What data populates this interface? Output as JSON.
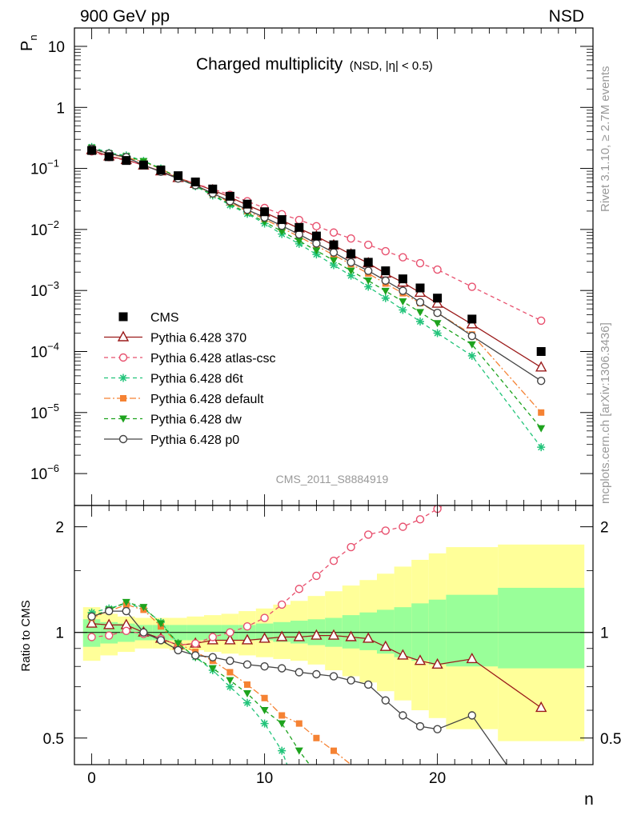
{
  "header": {
    "left": "900 GeV pp",
    "right": "NSD",
    "title_main": "Charged multiplicity",
    "title_sub": "(NSD, |η| < 0.5)",
    "side_top": "Rivet 3.1.10, ≥ 2.7M events",
    "side_bottom": "mcplots.cern.ch [arXiv:1306.3436]",
    "watermark": "CMS_2011_S8884919"
  },
  "colors": {
    "CMS": "#000000",
    "p370": "#9b1b1b",
    "atlas": "#e8506e",
    "d6t": "#22c47a",
    "default": "#f58233",
    "dw": "#1ea31e",
    "p0": "#444444",
    "band_inner": "#99ff99",
    "band_outer": "#ffff99"
  },
  "chart_data": [
    {
      "type": "line",
      "name": "main",
      "ylabel": "P",
      "ylabel_sub": "n",
      "yscale": "log",
      "xlim": [
        -1,
        29
      ],
      "ylim": [
        3e-07,
        20
      ],
      "yticks": [
        {
          "v": 1e-06,
          "base": "10",
          "exp": "−6"
        },
        {
          "v": 1e-05,
          "base": "10",
          "exp": "−5"
        },
        {
          "v": 0.0001,
          "base": "10",
          "exp": "−4"
        },
        {
          "v": 0.001,
          "base": "10",
          "exp": "−3"
        },
        {
          "v": 0.01,
          "base": "10",
          "exp": "−2"
        },
        {
          "v": 0.1,
          "base": "10",
          "exp": "−1"
        },
        {
          "v": 1,
          "base": "1",
          "exp": ""
        },
        {
          "v": 10,
          "base": "10",
          "exp": ""
        }
      ],
      "x": [
        0,
        1,
        2,
        3,
        4,
        5,
        6,
        7,
        8,
        9,
        10,
        11,
        12,
        13,
        14,
        15,
        16,
        17,
        18,
        19,
        20,
        22,
        26
      ],
      "series": [
        {
          "name": "CMS",
          "key": "CMS",
          "marker": "square",
          "values": [
            0.197,
            0.156,
            0.135,
            0.114,
            0.094,
            0.076,
            0.06,
            0.046,
            0.035,
            0.026,
            0.0195,
            0.0145,
            0.0108,
            0.0078,
            0.0056,
            0.004,
            0.0029,
            0.0021,
            0.00155,
            0.0011,
            0.00075,
            0.00034,
            0.0001
          ]
        },
        {
          "name": "Pythia 6.428 370",
          "key": "p370",
          "marker": "triangle-open",
          "dash": "",
          "values": [
            0.2,
            0.158,
            0.138,
            0.112,
            0.09,
            0.07,
            0.056,
            0.044,
            0.034,
            0.025,
            0.019,
            0.0141,
            0.0104,
            0.0077,
            0.0055,
            0.0039,
            0.0028,
            0.0019,
            0.00135,
            0.00092,
            0.00061,
            0.00028,
            5.5e-05
          ]
        },
        {
          "name": "Pythia 6.428 atlas-csc",
          "key": "atlas",
          "marker": "circle-open",
          "dash": "5,4",
          "values": [
            0.19,
            0.153,
            0.136,
            0.113,
            0.09,
            0.07,
            0.056,
            0.046,
            0.037,
            0.029,
            0.0225,
            0.0178,
            0.0143,
            0.0113,
            0.0089,
            0.0071,
            0.0056,
            0.0044,
            0.0035,
            0.0028,
            0.0022,
            0.00115,
            0.00032
          ]
        },
        {
          "name": "Pythia 6.428 d6t",
          "key": "d6t",
          "marker": "star",
          "dash": "5,4",
          "values": [
            0.225,
            0.18,
            0.163,
            0.133,
            0.1,
            0.07,
            0.051,
            0.036,
            0.025,
            0.018,
            0.0125,
            0.0084,
            0.0058,
            0.0039,
            0.0026,
            0.00175,
            0.00115,
            0.00075,
            0.00048,
            0.00031,
            0.0002,
            8.5e-05,
            2.7e-06
          ]
        },
        {
          "name": "Pythia 6.428 default",
          "key": "default",
          "marker": "square-small",
          "dash": "8,3,2,3",
          "values": [
            0.212,
            0.17,
            0.152,
            0.128,
            0.098,
            0.071,
            0.053,
            0.038,
            0.028,
            0.02,
            0.0148,
            0.0106,
            0.0076,
            0.0054,
            0.0038,
            0.0027,
            0.0019,
            0.0013,
            0.0009,
            0.00062,
            0.00043,
            0.00019,
            1e-05
          ]
        },
        {
          "name": "Pythia 6.428 dw",
          "key": "dw",
          "marker": "triangle-down",
          "dash": "5,4",
          "values": [
            0.218,
            0.175,
            0.158,
            0.131,
            0.099,
            0.07,
            0.052,
            0.037,
            0.026,
            0.0187,
            0.0133,
            0.0093,
            0.0065,
            0.0045,
            0.0031,
            0.0021,
            0.00145,
            0.00098,
            0.00066,
            0.00044,
            0.00029,
            0.00013,
            5.5e-06
          ]
        },
        {
          "name": "Pythia 6.428 p0",
          "key": "p0",
          "marker": "circle-open",
          "dash": "",
          "values": [
            0.21,
            0.175,
            0.153,
            0.113,
            0.088,
            0.068,
            0.053,
            0.039,
            0.029,
            0.021,
            0.0157,
            0.0115,
            0.0083,
            0.0059,
            0.0042,
            0.0029,
            0.0021,
            0.00145,
            0.00099,
            0.00064,
            0.00043,
            0.00018,
            3.3e-05
          ]
        }
      ]
    },
    {
      "type": "line",
      "name": "ratio",
      "ylabel": "Ratio to CMS",
      "yscale": "log",
      "xlabel": "n",
      "xlim": [
        -1,
        29
      ],
      "ylim": [
        0.42,
        2.3
      ],
      "yticks": [
        {
          "v": 0.5,
          "label": "0.5"
        },
        {
          "v": 1,
          "label": "1"
        },
        {
          "v": 2,
          "label": "2"
        }
      ],
      "xticks": [
        {
          "v": 0,
          "label": "0"
        },
        {
          "v": 10,
          "label": "10"
        },
        {
          "v": 20,
          "label": "20"
        }
      ],
      "bands": {
        "edges": [
          -0.5,
          0.5,
          1.5,
          2.5,
          3.5,
          4.5,
          5.5,
          6.5,
          7.5,
          8.5,
          9.5,
          10.5,
          11.5,
          12.5,
          13.5,
          14.5,
          15.5,
          16.5,
          17.5,
          18.5,
          19.5,
          20.5,
          23.5,
          28.5
        ],
        "inner_lo": [
          0.91,
          0.93,
          0.94,
          0.95,
          0.95,
          0.95,
          0.95,
          0.95,
          0.95,
          0.95,
          0.95,
          0.94,
          0.93,
          0.92,
          0.91,
          0.9,
          0.89,
          0.87,
          0.85,
          0.83,
          0.81,
          0.8,
          0.79
        ],
        "inner_hi": [
          1.09,
          1.07,
          1.06,
          1.05,
          1.05,
          1.05,
          1.05,
          1.05,
          1.05,
          1.05,
          1.06,
          1.07,
          1.08,
          1.09,
          1.1,
          1.12,
          1.14,
          1.16,
          1.18,
          1.21,
          1.24,
          1.28,
          1.34
        ],
        "outer_lo": [
          0.83,
          0.86,
          0.88,
          0.9,
          0.9,
          0.89,
          0.89,
          0.88,
          0.87,
          0.86,
          0.85,
          0.84,
          0.83,
          0.81,
          0.78,
          0.75,
          0.72,
          0.68,
          0.64,
          0.6,
          0.57,
          0.53,
          0.49
        ],
        "outer_hi": [
          1.18,
          1.13,
          1.11,
          1.1,
          1.1,
          1.1,
          1.11,
          1.12,
          1.13,
          1.15,
          1.17,
          1.2,
          1.23,
          1.27,
          1.31,
          1.36,
          1.41,
          1.47,
          1.54,
          1.61,
          1.68,
          1.75,
          1.78
        ]
      },
      "series": [
        {
          "key": "p370",
          "marker": "triangle-open",
          "dash": "",
          "x": [
            0,
            1,
            2,
            3,
            4,
            5,
            6,
            7,
            8,
            9,
            10,
            11,
            12,
            13,
            14,
            15,
            16,
            17,
            18,
            19,
            20,
            22,
            26
          ],
          "values": [
            1.06,
            1.05,
            1.05,
            1.0,
            0.96,
            0.92,
            0.93,
            0.95,
            0.95,
            0.95,
            0.96,
            0.97,
            0.97,
            0.98,
            0.98,
            0.97,
            0.96,
            0.91,
            0.86,
            0.83,
            0.81,
            0.84,
            0.61
          ]
        },
        {
          "key": "atlas",
          "marker": "circle-open",
          "dash": "5,4",
          "x": [
            0,
            1,
            2,
            3,
            4,
            5,
            6,
            7,
            8,
            9,
            10,
            11,
            12,
            13,
            14,
            15,
            16,
            17,
            18,
            19,
            20,
            20.4
          ],
          "values": [
            0.97,
            0.98,
            1.01,
            0.99,
            0.96,
            0.92,
            0.93,
            0.97,
            1.0,
            1.04,
            1.1,
            1.2,
            1.33,
            1.45,
            1.6,
            1.75,
            1.9,
            1.95,
            2.0,
            2.1,
            2.25,
            2.3
          ]
        },
        {
          "key": "d6t",
          "marker": "star",
          "dash": "5,4",
          "x": [
            0,
            1,
            2,
            3,
            4,
            5,
            6,
            7,
            8,
            9,
            10,
            11,
            11.3
          ],
          "values": [
            1.14,
            1.17,
            1.21,
            1.17,
            1.07,
            0.93,
            0.85,
            0.78,
            0.7,
            0.63,
            0.55,
            0.46,
            0.42
          ]
        },
        {
          "key": "default",
          "marker": "square-small",
          "dash": "8,3,2,3",
          "x": [
            0,
            1,
            2,
            3,
            4,
            5,
            6,
            7,
            8,
            9,
            10,
            11,
            12,
            13,
            14,
            15
          ],
          "values": [
            1.1,
            1.15,
            1.2,
            1.16,
            1.04,
            0.93,
            0.88,
            0.83,
            0.77,
            0.71,
            0.65,
            0.58,
            0.55,
            0.5,
            0.46,
            0.42
          ]
        },
        {
          "key": "dw",
          "marker": "triangle-down",
          "dash": "5,4",
          "x": [
            0,
            1,
            2,
            3,
            4,
            5,
            6,
            7,
            8,
            9,
            10,
            11,
            12,
            12.6
          ],
          "values": [
            1.11,
            1.16,
            1.22,
            1.18,
            1.06,
            0.93,
            0.85,
            0.79,
            0.73,
            0.67,
            0.6,
            0.55,
            0.46,
            0.42
          ]
        },
        {
          "key": "p0",
          "marker": "circle-open",
          "dash": "",
          "x": [
            0,
            1,
            2,
            3,
            4,
            5,
            6,
            7,
            8,
            9,
            10,
            11,
            12,
            13,
            14,
            15,
            16,
            17,
            18,
            19,
            20,
            22,
            24
          ],
          "values": [
            1.11,
            1.15,
            1.15,
            1.0,
            0.95,
            0.89,
            0.86,
            0.85,
            0.83,
            0.81,
            0.8,
            0.79,
            0.77,
            0.76,
            0.75,
            0.73,
            0.71,
            0.64,
            0.58,
            0.54,
            0.53,
            0.58,
            0.42
          ]
        }
      ]
    }
  ]
}
